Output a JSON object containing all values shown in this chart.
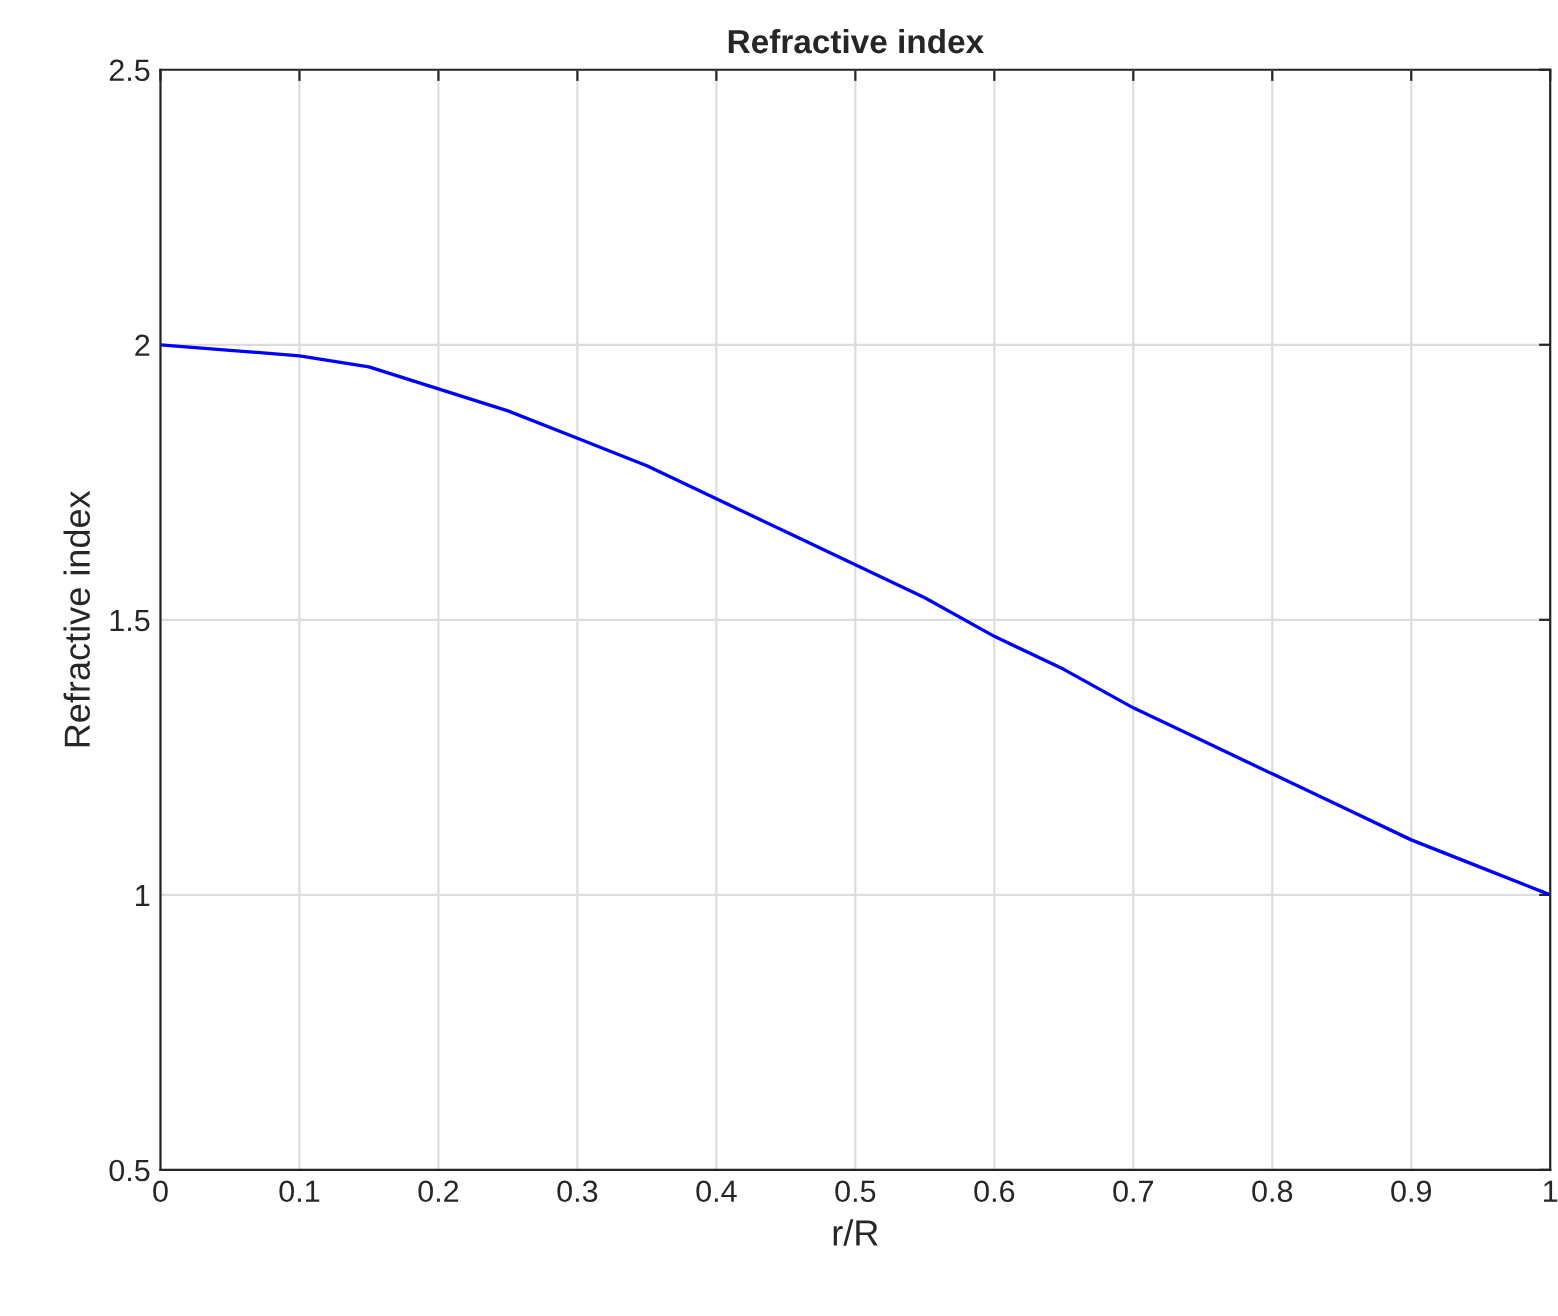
{
  "chart_data": {
    "type": "line",
    "title": "Refractive index",
    "xlabel": "r/R",
    "ylabel": "Refractive index",
    "x": [
      0,
      0.05,
      0.1,
      0.15,
      0.2,
      0.25,
      0.3,
      0.35,
      0.4,
      0.45,
      0.5,
      0.55,
      0.6,
      0.65,
      0.7,
      0.75,
      0.8,
      0.85,
      0.9,
      0.95,
      1.0
    ],
    "series": [
      {
        "color": "#0000ff",
        "values": [
          2.0,
          1.99,
          1.98,
          1.96,
          1.92,
          1.88,
          1.83,
          1.78,
          1.72,
          1.66,
          1.6,
          1.54,
          1.47,
          1.41,
          1.34,
          1.28,
          1.22,
          1.16,
          1.1,
          1.05,
          1.0
        ]
      }
    ],
    "xlim": [
      0,
      1
    ],
    "xticks": [
      {
        "value": 0,
        "label": "0"
      },
      0.1,
      0.2,
      0.3,
      0.4,
      0.5,
      0.6,
      0.7,
      0.8,
      0.9,
      {
        "value": 1,
        "label": "1"
      }
    ],
    "ylim": [
      0.5,
      2.5
    ],
    "yticks": [
      0.5,
      {
        "value": 1,
        "label": "1"
      },
      1.5,
      {
        "value": 2,
        "label": "2"
      },
      2.5
    ],
    "grid": true,
    "line_style": "solid"
  }
}
